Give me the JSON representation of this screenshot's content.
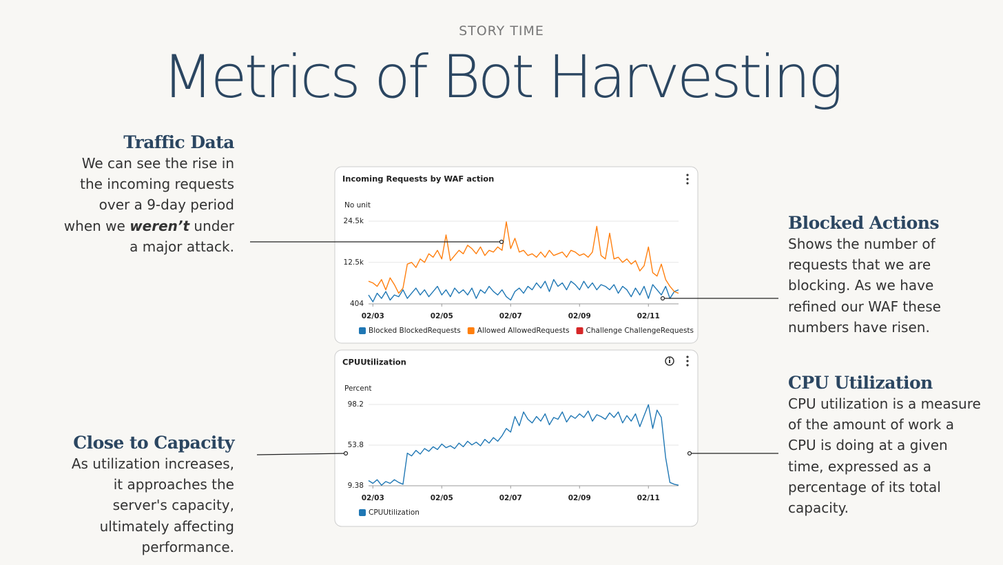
{
  "header": {
    "eyebrow": "STORY TIME",
    "title": "Metrics of Bot Harvesting"
  },
  "callouts": [
    {
      "heading": "Traffic Data",
      "text": [
        "We can see the rise in the incoming requests over a 9-day period when we ",
        "weren’t",
        " under a major attack."
      ]
    },
    {
      "heading": "Close to Capacity",
      "text": [
        "As utilization increases, it approaches the server's capacity, ultimately affecting performance."
      ]
    },
    {
      "heading": "Blocked Actions",
      "text": [
        "Shows the number of requests that we are blocking.  As we have refined our WAF these numbers have risen."
      ]
    },
    {
      "heading": "CPU Utilization",
      "text": [
        "CPU utilization is a measure of the amount of work a CPU is doing at a given time, expressed as a percentage of its total capacity."
      ]
    }
  ],
  "chart_data": [
    {
      "type": "line",
      "title": "Incoming Requests by WAF action",
      "y_label": "No unit",
      "xlim": [
        0,
        72
      ],
      "xticks": [
        {
          "value": 1,
          "label": "02/03"
        },
        {
          "value": 17,
          "label": "02/05"
        },
        {
          "value": 33,
          "label": "02/07"
        },
        {
          "value": 49,
          "label": "02/09"
        },
        {
          "value": 65,
          "label": "02/11"
        }
      ],
      "ylim": [
        404,
        24500
      ],
      "yticks": [
        404,
        {
          "value": 12500,
          "label": "12.5k"
        },
        {
          "value": 24500,
          "label": "24.5k"
        }
      ],
      "grid": true,
      "series": [
        {
          "name": "Blocked BlockedRequests",
          "color": "#1f77b4",
          "values": [
            3000,
            1000,
            3500,
            2000,
            4000,
            1500,
            3000,
            2500,
            4500,
            2000,
            3500,
            5000,
            3000,
            4500,
            2500,
            4000,
            5500,
            3000,
            4500,
            2500,
            5000,
            3500,
            4500,
            3000,
            5000,
            2000,
            4500,
            3500,
            5500,
            4000,
            3000,
            4500,
            2500,
            1500,
            4000,
            5000,
            3500,
            5500,
            4500,
            6500,
            5000,
            7000,
            4000,
            7500,
            5500,
            6500,
            4500,
            7000,
            6000,
            4500,
            7000,
            5000,
            6500,
            4500,
            6000,
            5500,
            4500,
            6000,
            3500,
            5500,
            4500,
            2500,
            5000,
            3000,
            5500,
            2000,
            6000,
            4500,
            3000,
            5500,
            2000,
            4000,
            4500
          ]
        },
        {
          "name": "Allowed AllowedRequests",
          "color": "#ff7f0e",
          "values": [
            7000,
            6500,
            5500,
            7500,
            4500,
            8000,
            6000,
            3500,
            5000,
            12000,
            12500,
            11000,
            13500,
            12500,
            15000,
            14000,
            16000,
            13500,
            20500,
            13000,
            14500,
            16000,
            15000,
            17500,
            16500,
            15000,
            17000,
            14500,
            16000,
            15500,
            17000,
            16000,
            24300,
            16500,
            19500,
            15500,
            16000,
            14500,
            15000,
            14000,
            15500,
            14000,
            16000,
            14500,
            15000,
            15500,
            14000,
            16000,
            15500,
            14500,
            15000,
            14000,
            15500,
            23000,
            14500,
            13500,
            21000,
            13500,
            14000,
            12500,
            13500,
            12000,
            13000,
            10000,
            11500,
            17000,
            9500,
            8500,
            12000,
            7500,
            5500,
            4000,
            3500
          ]
        },
        {
          "name": "Challenge ChallengeRequests",
          "color": "#d62728"
        }
      ]
    },
    {
      "type": "line",
      "title": "CPUUtilization",
      "y_label": "Percent",
      "xlim": [
        0,
        72
      ],
      "xticks": [
        {
          "value": 1,
          "label": "02/03"
        },
        {
          "value": 17,
          "label": "02/05"
        },
        {
          "value": 33,
          "label": "02/07"
        },
        {
          "value": 49,
          "label": "02/09"
        },
        {
          "value": 65,
          "label": "02/11"
        }
      ],
      "ylim": [
        9.38,
        98.2
      ],
      "yticks": [
        9.38,
        53.8,
        98.2
      ],
      "grid": true,
      "series": [
        {
          "name": "CPUUtilization",
          "color": "#1f77b4",
          "values": [
            15,
            12,
            16,
            10,
            14,
            12,
            16,
            13,
            11,
            45,
            42,
            48,
            44,
            50,
            47,
            52,
            49,
            55,
            51,
            53,
            50,
            56,
            52,
            58,
            54,
            57,
            53,
            60,
            56,
            62,
            58,
            64,
            72,
            68,
            85,
            75,
            90,
            82,
            78,
            85,
            80,
            88,
            76,
            84,
            82,
            90,
            79,
            86,
            83,
            88,
            84,
            91,
            80,
            87,
            85,
            82,
            89,
            84,
            90,
            78,
            86,
            80,
            88,
            74,
            86,
            98,
            72,
            92,
            84,
            40,
            13,
            11,
            10
          ]
        }
      ]
    }
  ]
}
